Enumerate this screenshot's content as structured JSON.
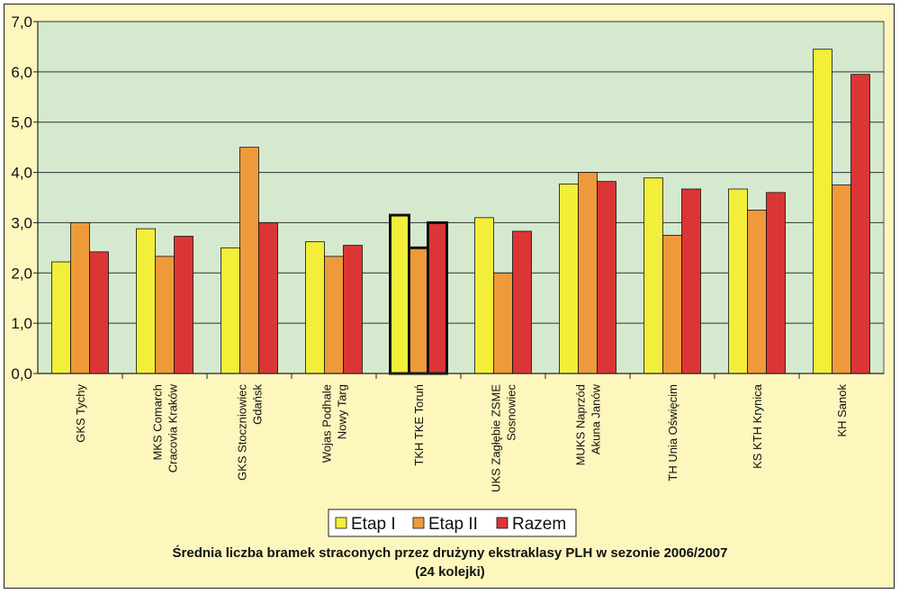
{
  "chart_data": {
    "type": "bar",
    "title": "Średnia liczba bramek straconych przez drużyny ekstraklasy PLH w sezonie 2006/2007",
    "subtitle": "(24 kolejki)",
    "ylim": [
      0,
      7
    ],
    "yticks": [
      "0,0",
      "1,0",
      "2,0",
      "3,0",
      "4,0",
      "5,0",
      "6,0",
      "7,0"
    ],
    "grid": true,
    "legend_position": "bottom",
    "plot_background": "#d5e9cf",
    "frame_background": "#fdf6bd",
    "highlighted_category_index": 4,
    "categories": [
      [
        "GKS Tychy"
      ],
      [
        "MKS Comarch",
        "Cracovia Kraków"
      ],
      [
        "GKS Stoczniowiec",
        "Gdańsk"
      ],
      [
        "Wojas Podhale",
        "Nowy Targ"
      ],
      [
        "TKH TKE Toruń"
      ],
      [
        "UKS Zagłębie ZSME",
        "Sosnowiec"
      ],
      [
        "MUKS Naprzód",
        "Akuna Janów"
      ],
      [
        "TH Unia Oświęcim"
      ],
      [
        "KS KTH Krynica"
      ],
      [
        "KH Sanok"
      ]
    ],
    "series": [
      {
        "name": "Etap I",
        "color": "#f2ee3a",
        "values": [
          2.22,
          2.88,
          2.5,
          2.62,
          3.15,
          3.1,
          3.77,
          3.89,
          3.67,
          6.45
        ]
      },
      {
        "name": "Etap II",
        "color": "#ef9a3a",
        "values": [
          3.0,
          2.33,
          4.5,
          2.33,
          2.5,
          2.0,
          4.0,
          2.75,
          3.25,
          3.75
        ]
      },
      {
        "name": "Razem",
        "color": "#db3535",
        "values": [
          2.42,
          2.73,
          3.0,
          2.55,
          3.0,
          2.83,
          3.82,
          3.67,
          3.6,
          5.95
        ]
      }
    ]
  }
}
